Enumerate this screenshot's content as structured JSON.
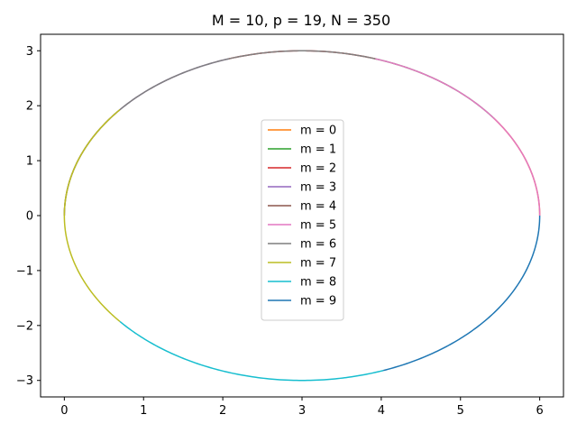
{
  "chart_data": {
    "type": "line",
    "title": "M = 10, p = 19, N = 350",
    "xlabel": "",
    "ylabel": "",
    "xlim": [
      -0.3,
      6.3
    ],
    "ylim": [
      -3.3,
      3.3
    ],
    "x_ticks": [
      0,
      1,
      2,
      3,
      4,
      5,
      6
    ],
    "x_tick_labels": [
      "0",
      "1",
      "2",
      "3",
      "4",
      "5",
      "6"
    ],
    "y_ticks": [
      -3,
      -2,
      -1,
      0,
      1,
      2,
      3
    ],
    "y_tick_labels": [
      "−3",
      "−2",
      "−1",
      "0",
      "1",
      "2",
      "3"
    ],
    "grid": false,
    "legend_position": "center",
    "curve": {
      "shape": "ellipse",
      "center": [
        3,
        0
      ],
      "semi_axis_x": 3,
      "semi_axis_y": 3
    },
    "series": [
      {
        "name": "m = 0",
        "color": "#ff7f0e",
        "angle_range_deg": [
          0,
          36
        ]
      },
      {
        "name": "m = 1",
        "color": "#2ca02c",
        "angle_range_deg": [
          36,
          72
        ]
      },
      {
        "name": "m = 2",
        "color": "#d62728",
        "angle_range_deg": [
          72,
          108
        ]
      },
      {
        "name": "m = 3",
        "color": "#9467bd",
        "angle_range_deg": [
          108,
          144
        ]
      },
      {
        "name": "m = 4",
        "color": "#8c564b",
        "angle_range_deg": [
          144,
          180
        ]
      },
      {
        "name": "m = 5",
        "color": "#e377c2",
        "angle_range_deg": [
          0,
          72
        ]
      },
      {
        "name": "m = 6",
        "color": "#7f7f7f",
        "angle_range_deg": [
          72,
          180
        ]
      },
      {
        "name": "m = 7",
        "color": "#bcbd22",
        "angle_range_deg": [
          140,
          220
        ]
      },
      {
        "name": "m = 8",
        "color": "#17becf",
        "angle_range_deg": [
          220,
          290
        ]
      },
      {
        "name": "m = 9",
        "color": "#1f77b4",
        "angle_range_deg": [
          290,
          360
        ]
      }
    ]
  }
}
